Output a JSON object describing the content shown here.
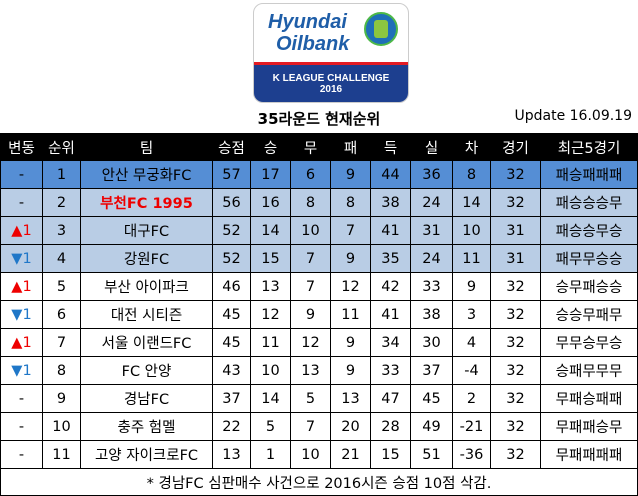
{
  "logo": {
    "line1": "Hyundai",
    "line2": "Oilbank",
    "line3": "K LEAGUE CHALLENGE",
    "line4": "2016"
  },
  "title": "35라운드 현재순위",
  "update": "Update 16.09.19",
  "colors": {
    "leader_row": "#558ed5",
    "promotion_rows": "#b9cde5",
    "up": "#e00000",
    "down": "#1f77c8",
    "highlight_team": "#e00000"
  },
  "headers": [
    "변동",
    "순위",
    "팀",
    "승점",
    "승",
    "무",
    "패",
    "득",
    "실",
    "차",
    "경기",
    "최근5경기"
  ],
  "rows": [
    {
      "change": "-",
      "dir": "none",
      "rank": "1",
      "team": "안산 무궁화FC",
      "pts": "57",
      "w": "17",
      "d": "6",
      "l": "9",
      "gf": "44",
      "ga": "36",
      "gd": "8",
      "gp": "32",
      "recent": "패승패패패"
    },
    {
      "change": "-",
      "dir": "none",
      "rank": "2",
      "team": "부천FC 1995",
      "highlight": true,
      "pts": "56",
      "w": "16",
      "d": "8",
      "l": "8",
      "gf": "38",
      "ga": "24",
      "gd": "14",
      "gp": "32",
      "recent": "패승승승무"
    },
    {
      "change": "▲1",
      "dir": "up",
      "rank": "3",
      "team": "대구FC",
      "pts": "52",
      "w": "14",
      "d": "10",
      "l": "7",
      "gf": "41",
      "ga": "31",
      "gd": "10",
      "gp": "31",
      "recent": "패승승무승"
    },
    {
      "change": "▼1",
      "dir": "down",
      "rank": "4",
      "team": "강원FC",
      "pts": "52",
      "w": "15",
      "d": "7",
      "l": "9",
      "gf": "35",
      "ga": "24",
      "gd": "11",
      "gp": "31",
      "recent": "패무무승승"
    },
    {
      "change": "▲1",
      "dir": "up",
      "rank": "5",
      "team": "부산 아이파크",
      "pts": "46",
      "w": "13",
      "d": "7",
      "l": "12",
      "gf": "42",
      "ga": "33",
      "gd": "9",
      "gp": "32",
      "recent": "승무패승승"
    },
    {
      "change": "▼1",
      "dir": "down",
      "rank": "6",
      "team": "대전 시티즌",
      "pts": "45",
      "w": "12",
      "d": "9",
      "l": "11",
      "gf": "41",
      "ga": "38",
      "gd": "3",
      "gp": "32",
      "recent": "승승무패무"
    },
    {
      "change": "▲1",
      "dir": "up",
      "rank": "7",
      "team": "서울 이랜드FC",
      "pts": "45",
      "w": "11",
      "d": "12",
      "l": "9",
      "gf": "34",
      "ga": "30",
      "gd": "4",
      "gp": "32",
      "recent": "무무승무승"
    },
    {
      "change": "▼1",
      "dir": "down",
      "rank": "8",
      "team": "FC 안양",
      "pts": "43",
      "w": "10",
      "d": "13",
      "l": "9",
      "gf": "33",
      "ga": "37",
      "gd": "-4",
      "gp": "32",
      "recent": "승패무무무"
    },
    {
      "change": "-",
      "dir": "none",
      "rank": "9",
      "team": "경남FC",
      "pts": "37",
      "w": "14",
      "d": "5",
      "l": "13",
      "gf": "47",
      "ga": "45",
      "gd": "2",
      "gp": "32",
      "recent": "무패승패패"
    },
    {
      "change": "-",
      "dir": "none",
      "rank": "10",
      "team": "충주 험멜",
      "pts": "22",
      "w": "5",
      "d": "7",
      "l": "20",
      "gf": "28",
      "ga": "49",
      "gd": "-21",
      "gp": "32",
      "recent": "무패패승무"
    },
    {
      "change": "-",
      "dir": "none",
      "rank": "11",
      "team": "고양 자이크로FC",
      "pts": "13",
      "w": "1",
      "d": "10",
      "l": "21",
      "gf": "15",
      "ga": "51",
      "gd": "-36",
      "gp": "32",
      "recent": "무패패패패"
    }
  ],
  "footnote": "* 경남FC 심판매수 사건으로 2016시즌 승점 10점 삭감."
}
